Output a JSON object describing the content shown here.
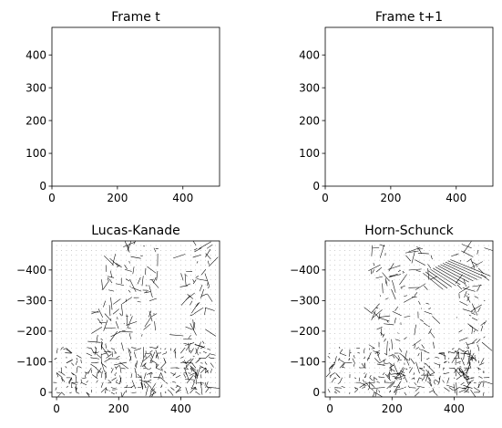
{
  "figure": {
    "background": "#ffffff"
  },
  "chart_data": [
    {
      "type": "heatmap",
      "title": "Frame t",
      "xlabel": "",
      "ylabel": "",
      "xlim": [
        0,
        512
      ],
      "ylim": [
        484,
        0
      ],
      "x_ticks": [
        0,
        200,
        400
      ],
      "y_ticks": [
        0,
        100,
        200,
        300,
        400
      ],
      "colormap": "viridis",
      "colors": {
        "dark": "#3b2b72",
        "mid": "#2a7f7e",
        "teal": "#3d9c85",
        "bright": "#b9de2c"
      }
    },
    {
      "type": "heatmap",
      "title": "Frame t+1",
      "xlabel": "",
      "ylabel": "",
      "xlim": [
        0,
        512
      ],
      "ylim": [
        484,
        0
      ],
      "x_ticks": [
        0,
        200,
        400
      ],
      "y_ticks": [
        0,
        100,
        200,
        300,
        400
      ],
      "colormap": "viridis",
      "colors": {
        "dark": "#3b2b72",
        "mid": "#2a7f7e",
        "teal": "#3d9c85",
        "bright": "#b9de2c"
      }
    },
    {
      "type": "quiver",
      "title": "Lucas-Kanade",
      "xlabel": "",
      "ylabel": "",
      "xlim": [
        -15,
        525
      ],
      "ylim": [
        -495,
        15
      ],
      "x_ticks": [
        0,
        200,
        400
      ],
      "y_ticks": [
        0,
        -100,
        -200,
        -300,
        -400
      ],
      "grid_step": 16,
      "color": "#000000"
    },
    {
      "type": "quiver",
      "title": "Horn-Schunck",
      "xlabel": "",
      "ylabel": "",
      "xlim": [
        -15,
        525
      ],
      "ylim": [
        -495,
        15
      ],
      "x_ticks": [
        0,
        200,
        400
      ],
      "y_ticks": [
        0,
        -100,
        -200,
        -300,
        -400
      ],
      "grid_step": 16,
      "color": "#000000"
    }
  ]
}
